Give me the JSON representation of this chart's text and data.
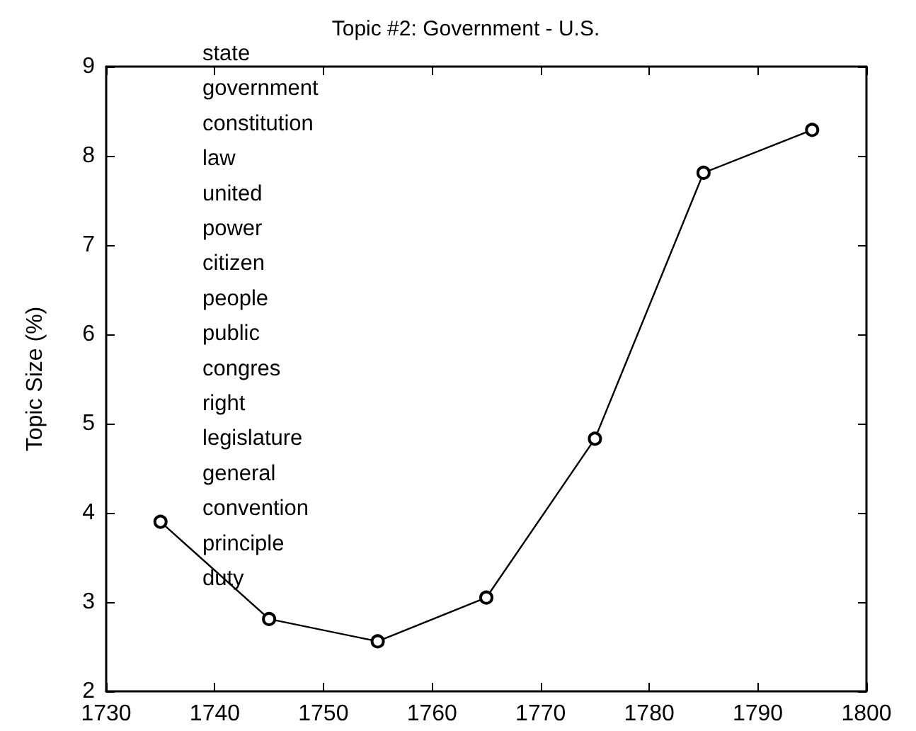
{
  "chart_data": {
    "type": "line",
    "title": "Topic #2: Government - U.S.",
    "ylabel": "Topic Size (%)",
    "x": [
      1735,
      1745,
      1755,
      1765,
      1775,
      1785,
      1795
    ],
    "series": [
      {
        "color": "#000000",
        "values": [
          3.9,
          2.81,
          2.56,
          3.05,
          4.83,
          7.81,
          8.29
        ]
      }
    ],
    "xlim": [
      1730,
      1800
    ],
    "xticks": [
      1730,
      1740,
      1750,
      1760,
      1770,
      1780,
      1790,
      1800
    ],
    "ylim": [
      2,
      9
    ],
    "yticks": [
      2,
      3,
      4,
      5,
      6,
      7,
      8,
      9
    ],
    "marker": "circle",
    "line_style": "solid",
    "annotations": [
      "state",
      "government",
      "constitution",
      "law",
      "united",
      "power",
      "citizen",
      "people",
      "public",
      "congres",
      "right",
      "legislature",
      "general",
      "convention",
      "principle",
      "duty"
    ]
  }
}
